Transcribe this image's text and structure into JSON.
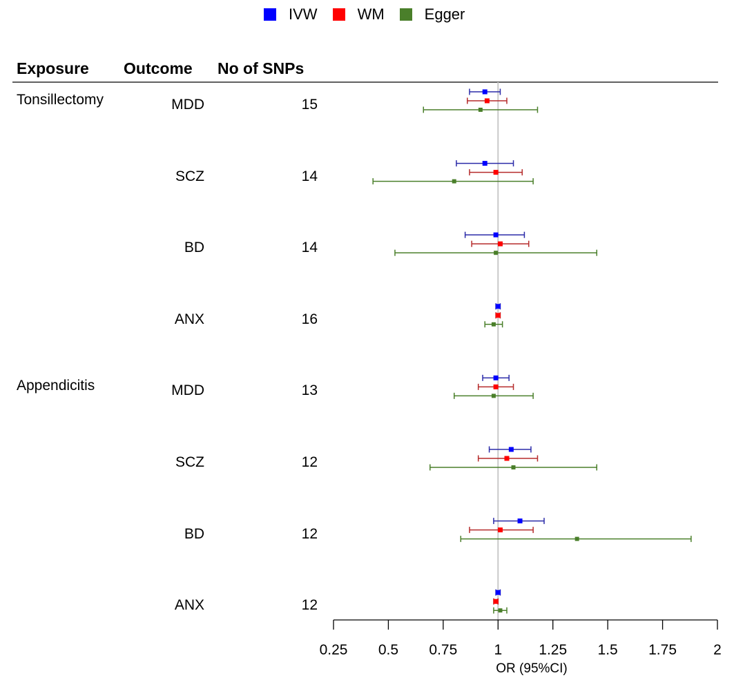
{
  "colors": {
    "IVW": "#0000ff",
    "WM": "#ff0000",
    "Egger": "#4a7f2a"
  },
  "chart_data": {
    "type": "forest",
    "title": "",
    "legend": [
      {
        "name": "IVW",
        "color": "#0000ff"
      },
      {
        "name": "WM",
        "color": "#ff0000"
      },
      {
        "name": "Egger",
        "color": "#4a7f2a"
      }
    ],
    "legend_position": "top-center",
    "columns": {
      "exposure": "Exposure",
      "outcome": "Outcome",
      "snps": "No of SNPs"
    },
    "xlabel": "OR (95%CI)",
    "xlim": [
      0.25,
      2
    ],
    "xticks": [
      0.25,
      0.5,
      0.75,
      1,
      1.25,
      1.5,
      1.75,
      2
    ],
    "xtick_labels": [
      "0.25",
      "0.5",
      "0.75",
      "1",
      "1.25",
      "1.5",
      "1.75",
      "2"
    ],
    "reference_line": 1,
    "rows": [
      {
        "exposure": "Tonsillectomy",
        "outcome": "MDD",
        "snps": "15",
        "estimates": [
          {
            "method": "IVW",
            "or": 0.94,
            "lo": 0.87,
            "hi": 1.01
          },
          {
            "method": "WM",
            "or": 0.95,
            "lo": 0.86,
            "hi": 1.04
          },
          {
            "method": "Egger",
            "or": 0.92,
            "lo": 0.66,
            "hi": 1.18
          }
        ]
      },
      {
        "exposure": "",
        "outcome": "SCZ",
        "snps": "14",
        "estimates": [
          {
            "method": "IVW",
            "or": 0.94,
            "lo": 0.81,
            "hi": 1.07
          },
          {
            "method": "WM",
            "or": 0.99,
            "lo": 0.87,
            "hi": 1.11
          },
          {
            "method": "Egger",
            "or": 0.8,
            "lo": 0.43,
            "hi": 1.16
          }
        ]
      },
      {
        "exposure": "",
        "outcome": "BD",
        "snps": "14",
        "estimates": [
          {
            "method": "IVW",
            "or": 0.99,
            "lo": 0.85,
            "hi": 1.12
          },
          {
            "method": "WM",
            "or": 1.01,
            "lo": 0.88,
            "hi": 1.14
          },
          {
            "method": "Egger",
            "or": 0.99,
            "lo": 0.53,
            "hi": 1.45
          }
        ]
      },
      {
        "exposure": "",
        "outcome": "ANX",
        "snps": "16",
        "estimates": [
          {
            "method": "IVW",
            "or": 1.0,
            "lo": 0.99,
            "hi": 1.01
          },
          {
            "method": "WM",
            "or": 1.0,
            "lo": 0.99,
            "hi": 1.01
          },
          {
            "method": "Egger",
            "or": 0.98,
            "lo": 0.94,
            "hi": 1.02
          }
        ]
      },
      {
        "exposure": "Appendicitis",
        "outcome": "MDD",
        "snps": "13",
        "estimates": [
          {
            "method": "IVW",
            "or": 0.99,
            "lo": 0.93,
            "hi": 1.05
          },
          {
            "method": "WM",
            "or": 0.99,
            "lo": 0.91,
            "hi": 1.07
          },
          {
            "method": "Egger",
            "or": 0.98,
            "lo": 0.8,
            "hi": 1.16
          }
        ]
      },
      {
        "exposure": "",
        "outcome": "SCZ",
        "snps": "12",
        "estimates": [
          {
            "method": "IVW",
            "or": 1.06,
            "lo": 0.96,
            "hi": 1.15
          },
          {
            "method": "WM",
            "or": 1.04,
            "lo": 0.91,
            "hi": 1.18
          },
          {
            "method": "Egger",
            "or": 1.07,
            "lo": 0.69,
            "hi": 1.45
          }
        ]
      },
      {
        "exposure": "",
        "outcome": "BD",
        "snps": "12",
        "estimates": [
          {
            "method": "IVW",
            "or": 1.1,
            "lo": 0.98,
            "hi": 1.21
          },
          {
            "method": "WM",
            "or": 1.01,
            "lo": 0.87,
            "hi": 1.16
          },
          {
            "method": "Egger",
            "or": 1.36,
            "lo": 0.83,
            "hi": 1.88
          }
        ]
      },
      {
        "exposure": "",
        "outcome": "ANX",
        "snps": "12",
        "estimates": [
          {
            "method": "IVW",
            "or": 1.0,
            "lo": 0.99,
            "hi": 1.01
          },
          {
            "method": "WM",
            "or": 0.99,
            "lo": 0.98,
            "hi": 1.0
          },
          {
            "method": "Egger",
            "or": 1.01,
            "lo": 0.98,
            "hi": 1.04
          }
        ]
      }
    ]
  }
}
